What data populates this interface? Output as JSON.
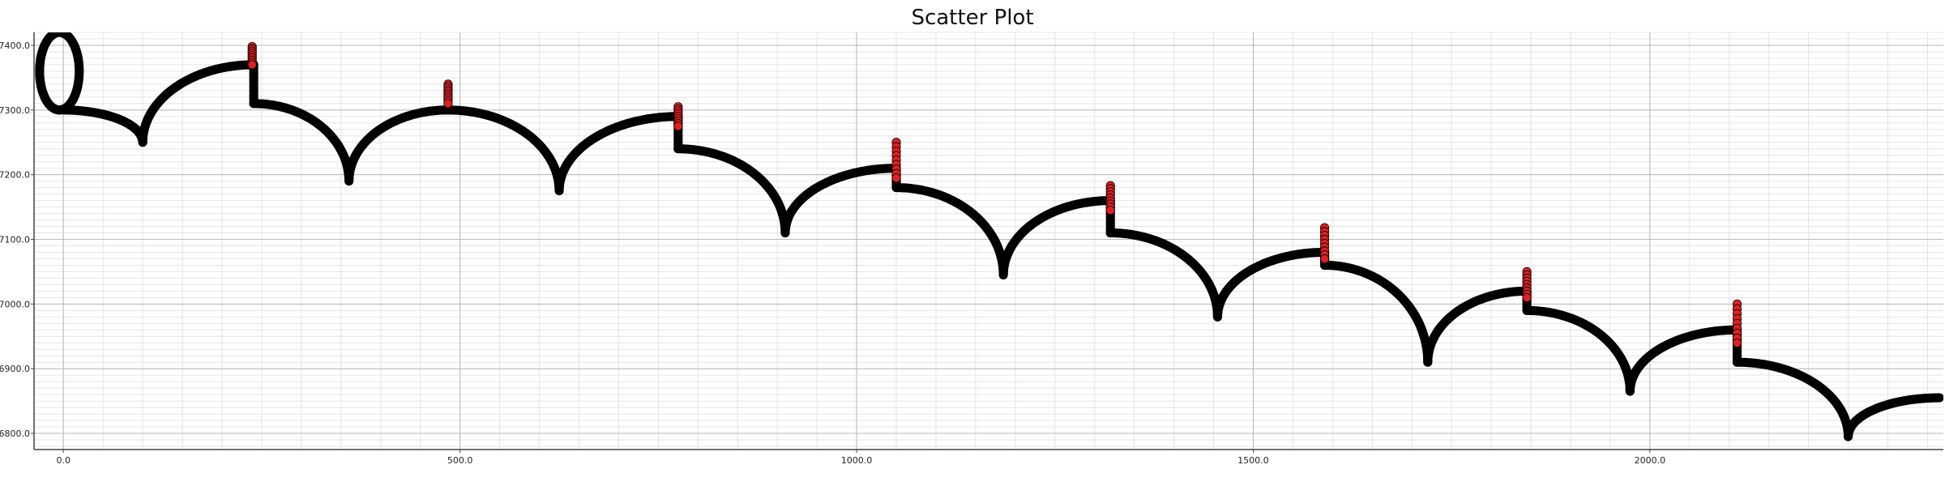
{
  "chart_data": {
    "type": "scatter",
    "title": "Scatter Plot",
    "xlabel": "",
    "ylabel": "",
    "xlim": [
      -37,
      2370
    ],
    "ylim": [
      6775,
      7420
    ],
    "grid": true,
    "minor_grid": true,
    "x_ticks": [
      0,
      500,
      1000,
      1500,
      2000
    ],
    "x_tick_labels": [
      "0.0",
      "500.0",
      "1000.0",
      "1500.0",
      "2000.0"
    ],
    "y_ticks": [
      6800,
      6900,
      7000,
      7100,
      7200,
      7300,
      7400
    ],
    "y_tick_labels": [
      "6800.0",
      "6900.0",
      "7000.0",
      "7100.0",
      "7200.0",
      "7300.0",
      "7400.0"
    ],
    "series": [
      {
        "color": "#000000",
        "marker": "circle",
        "description": "cycloid-like trajectory of dense points; first arch forms a closed loop",
        "loop": {
          "center": [
            -5,
            7360
          ],
          "radius_x": 25,
          "radius_y": 60,
          "join": [
            0,
            7300
          ]
        },
        "arches": [
          {
            "start": [
              0,
              7300
            ],
            "bottom": [
              100,
              7250
            ],
            "end": [
              240,
              7370
            ]
          },
          {
            "start": [
              240,
              7310
            ],
            "bottom": [
              360,
              7190
            ],
            "end": [
              485,
              7300
            ]
          },
          {
            "start": [
              485,
              7300
            ],
            "bottom": [
              625,
              7175
            ],
            "end": [
              775,
              7290
            ]
          },
          {
            "start": [
              775,
              7240
            ],
            "bottom": [
              910,
              7110
            ],
            "end": [
              1050,
              7210
            ]
          },
          {
            "start": [
              1050,
              7180
            ],
            "bottom": [
              1185,
              7045
            ],
            "end": [
              1320,
              7160
            ]
          },
          {
            "start": [
              1320,
              7110
            ],
            "bottom": [
              1455,
              6980
            ],
            "end": [
              1590,
              7080
            ]
          },
          {
            "start": [
              1590,
              7060
            ],
            "bottom": [
              1720,
              6910
            ],
            "end": [
              1845,
              7020
            ]
          },
          {
            "start": [
              1845,
              6990
            ],
            "bottom": [
              1975,
              6865
            ],
            "end": [
              2110,
              6960
            ]
          },
          {
            "start": [
              2110,
              6910
            ],
            "bottom": [
              2250,
              6795
            ],
            "end": [
              2365,
              6855
            ]
          }
        ]
      },
      {
        "color": "#e02020",
        "marker": "circle",
        "description": "highlighted points at the tops of the cusps",
        "clusters": [
          {
            "x": 238,
            "y_top": 7398,
            "y_bottom": 7370
          },
          {
            "x": 485,
            "y_top": 7340,
            "y_bottom": 7310
          },
          {
            "x": 775,
            "y_top": 7305,
            "y_bottom": 7275
          },
          {
            "x": 1050,
            "y_top": 7250,
            "y_bottom": 7195
          },
          {
            "x": 1320,
            "y_top": 7183,
            "y_bottom": 7145
          },
          {
            "x": 1590,
            "y_top": 7118,
            "y_bottom": 7070
          },
          {
            "x": 1845,
            "y_top": 7050,
            "y_bottom": 7010
          },
          {
            "x": 2110,
            "y_top": 7000,
            "y_bottom": 6940
          }
        ]
      }
    ]
  }
}
